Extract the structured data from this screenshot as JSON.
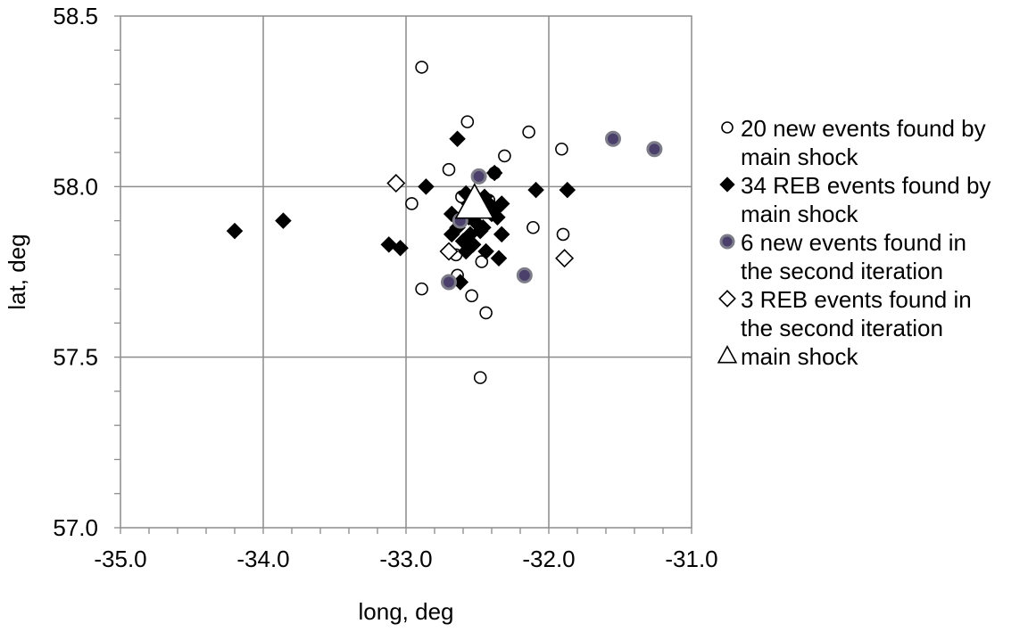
{
  "chart_data": {
    "type": "scatter",
    "xlabel": "long, deg",
    "ylabel": "lat, deg",
    "xlim": [
      -35.0,
      -31.0
    ],
    "ylim": [
      57.0,
      58.5
    ],
    "x_ticks": [
      "-35.0",
      "-34.0",
      "-33.0",
      "-32.0",
      "-31.0"
    ],
    "y_ticks": [
      "57.0",
      "57.5",
      "58.0",
      "58.5"
    ],
    "grid": true,
    "legend_position": "right",
    "series": [
      {
        "name": "20 new events found by main shock",
        "name_lines": [
          "20 new events found by",
          "main shock"
        ],
        "marker": "circle-open",
        "color": "#000000",
        "fill": "#ffffff",
        "points": [
          {
            "x": -32.89,
            "y": 58.35
          },
          {
            "x": -32.57,
            "y": 58.19
          },
          {
            "x": -32.14,
            "y": 58.16
          },
          {
            "x": -31.91,
            "y": 58.11
          },
          {
            "x": -32.31,
            "y": 58.09
          },
          {
            "x": -32.7,
            "y": 58.05
          },
          {
            "x": -32.38,
            "y": 58.04
          },
          {
            "x": -32.61,
            "y": 57.97
          },
          {
            "x": -32.96,
            "y": 57.95
          },
          {
            "x": -32.42,
            "y": 57.96
          },
          {
            "x": -32.11,
            "y": 57.88
          },
          {
            "x": -31.9,
            "y": 57.86
          },
          {
            "x": -32.65,
            "y": 57.8
          },
          {
            "x": -32.47,
            "y": 57.78
          },
          {
            "x": -32.64,
            "y": 57.74
          },
          {
            "x": -32.89,
            "y": 57.7
          },
          {
            "x": -32.54,
            "y": 57.68
          },
          {
            "x": -32.44,
            "y": 57.63
          },
          {
            "x": -32.48,
            "y": 57.44
          },
          {
            "x": -32.52,
            "y": 57.93
          }
        ]
      },
      {
        "name": "34 REB events found by main shock",
        "name_lines": [
          "34 REB events found by",
          "main shock"
        ],
        "marker": "diamond-filled",
        "color": "#000000",
        "fill": "#000000",
        "points": [
          {
            "x": -34.2,
            "y": 57.87
          },
          {
            "x": -33.86,
            "y": 57.9
          },
          {
            "x": -33.12,
            "y": 57.83
          },
          {
            "x": -33.04,
            "y": 57.82
          },
          {
            "x": -32.86,
            "y": 58.0
          },
          {
            "x": -32.64,
            "y": 58.14
          },
          {
            "x": -32.38,
            "y": 58.04
          },
          {
            "x": -32.09,
            "y": 57.99
          },
          {
            "x": -31.87,
            "y": 57.99
          },
          {
            "x": -32.58,
            "y": 57.98
          },
          {
            "x": -32.33,
            "y": 57.95
          },
          {
            "x": -32.38,
            "y": 57.93
          },
          {
            "x": -32.36,
            "y": 57.91
          },
          {
            "x": -32.68,
            "y": 57.92
          },
          {
            "x": -32.62,
            "y": 57.9
          },
          {
            "x": -32.56,
            "y": 57.91
          },
          {
            "x": -32.5,
            "y": 57.89
          },
          {
            "x": -32.46,
            "y": 57.88
          },
          {
            "x": -32.68,
            "y": 57.86
          },
          {
            "x": -32.55,
            "y": 57.86
          },
          {
            "x": -32.33,
            "y": 57.86
          },
          {
            "x": -32.6,
            "y": 57.84
          },
          {
            "x": -32.53,
            "y": 57.83
          },
          {
            "x": -32.44,
            "y": 57.81
          },
          {
            "x": -32.35,
            "y": 57.79
          },
          {
            "x": -32.62,
            "y": 57.72
          },
          {
            "x": -32.42,
            "y": 57.95
          },
          {
            "x": -32.64,
            "y": 57.88
          },
          {
            "x": -32.52,
            "y": 57.94
          },
          {
            "x": -32.48,
            "y": 57.87
          },
          {
            "x": -32.4,
            "y": 57.92
          },
          {
            "x": -32.58,
            "y": 57.81
          },
          {
            "x": -32.45,
            "y": 57.97
          },
          {
            "x": -32.56,
            "y": 57.95
          }
        ]
      },
      {
        "name": "6 new events found in the second iteration",
        "name_lines": [
          "6 new events found in",
          "the second iteration"
        ],
        "marker": "circle-filled",
        "color": "#7d7d8a",
        "fill": "#4b3f6b",
        "points": [
          {
            "x": -31.55,
            "y": 58.14
          },
          {
            "x": -31.26,
            "y": 58.11
          },
          {
            "x": -32.49,
            "y": 58.03
          },
          {
            "x": -32.62,
            "y": 57.9
          },
          {
            "x": -32.7,
            "y": 57.72
          },
          {
            "x": -32.17,
            "y": 57.74
          }
        ]
      },
      {
        "name": "3 REB events found in the second iteration",
        "name_lines": [
          "3 REB events found in",
          "the second iteration"
        ],
        "marker": "diamond-open",
        "color": "#000000",
        "fill": "#ffffff",
        "points": [
          {
            "x": -33.07,
            "y": 58.01
          },
          {
            "x": -32.7,
            "y": 57.81
          },
          {
            "x": -31.89,
            "y": 57.79
          }
        ]
      },
      {
        "name": "main shock",
        "name_lines": [
          "main shock"
        ],
        "marker": "triangle-open",
        "color": "#000000",
        "fill": "#ffffff",
        "points": [
          {
            "x": -32.52,
            "y": 57.95
          }
        ]
      }
    ]
  }
}
